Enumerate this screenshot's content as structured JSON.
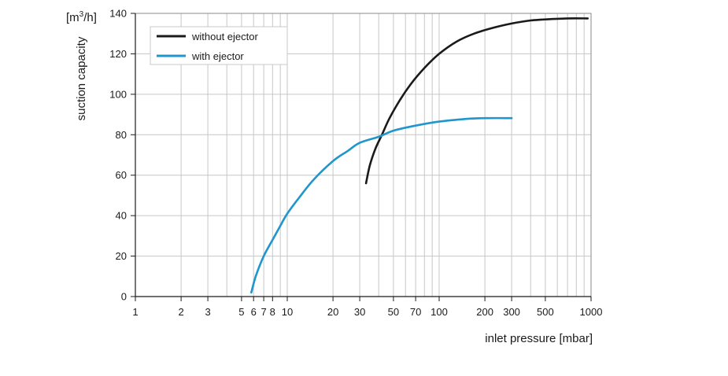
{
  "chart_data": {
    "type": "line",
    "xlabel": "inlet pressure [mbar]",
    "ylabel": "suction capacity",
    "yunit": "[m³/h]",
    "xscale": "log",
    "xlim": [
      1,
      1000
    ],
    "ylim": [
      0,
      140
    ],
    "x_tick_labels": [
      "1",
      "2",
      "3",
      "5",
      "6",
      "7",
      "8",
      "10",
      "20",
      "30",
      "50",
      "70",
      "100",
      "200",
      "300",
      "500",
      "1000"
    ],
    "x_tick_values": [
      1,
      2,
      3,
      5,
      6,
      7,
      8,
      10,
      20,
      30,
      50,
      70,
      100,
      200,
      300,
      500,
      1000
    ],
    "y_ticks": [
      0,
      20,
      40,
      60,
      80,
      100,
      120,
      140
    ],
    "grid": true,
    "legend_position": "top-left",
    "series": [
      {
        "name": "without ejector",
        "color": "#1a1a1a",
        "x": [
          33,
          35,
          38,
          42,
          47,
          55,
          65,
          80,
          100,
          130,
          170,
          230,
          300,
          400,
          550,
          700,
          950
        ],
        "y": [
          56,
          65,
          73,
          80,
          88,
          97,
          105,
          113,
          120,
          126,
          130,
          133,
          135,
          136.5,
          137.2,
          137.5,
          137.5
        ]
      },
      {
        "name": "with ejector",
        "color": "#1f96cc",
        "x": [
          5.8,
          6.2,
          7,
          8,
          9,
          10,
          12,
          15,
          20,
          25,
          30,
          40,
          50,
          70,
          100,
          150,
          200,
          300
        ],
        "y": [
          2,
          10,
          20,
          28,
          35,
          41,
          49,
          58,
          67,
          72,
          76,
          79,
          82,
          84.5,
          86.5,
          87.8,
          88.2,
          88.2
        ]
      }
    ]
  }
}
